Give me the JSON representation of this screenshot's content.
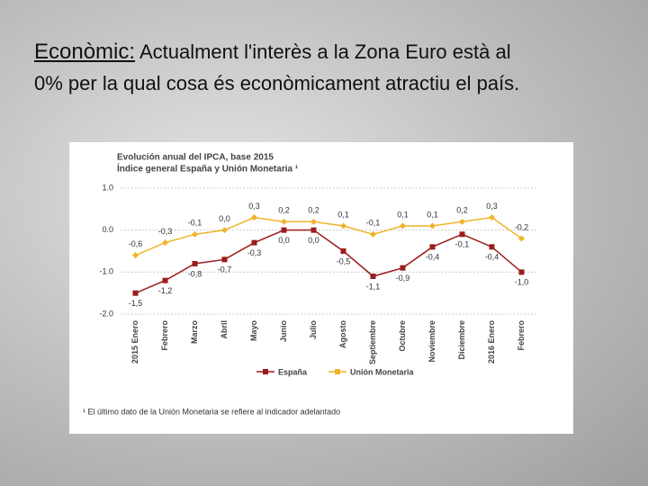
{
  "heading": {
    "label": "Econòmic:",
    "line1": "Actualment l'interès a la Zona Euro està al",
    "line2": "0% per la qual cosa és econòmicament atractiu el país."
  },
  "chart_data": {
    "type": "line",
    "title": "Evolución anual del IPCA, base 2015",
    "subtitle": "Índice general España y Unión Monetaria ¹",
    "footnote": "¹ El último dato de la Unión Monetaria se refiere al indicador adelantado",
    "categories": [
      "2015 Enero",
      "Febrero",
      "Marzo",
      "Abril",
      "Mayo",
      "Junio",
      "Julio",
      "Agosto",
      "Septiembre",
      "Octubre",
      "Noviembre",
      "Diciembre",
      "2016 Enero",
      "Febrero"
    ],
    "series": [
      {
        "name": "España",
        "color": "#9b1c1c",
        "values": [
          -1.5,
          -1.2,
          -0.8,
          -0.7,
          -0.3,
          0.0,
          0.0,
          -0.5,
          -1.1,
          -0.9,
          -0.4,
          -0.1,
          -0.4,
          -1.0
        ],
        "value_labels": [
          "-1,5",
          "-1,2",
          "-0,8",
          "-0,7",
          "-0,3",
          "0,0",
          "0,0",
          "-0,5",
          "-1,1",
          "-0,9",
          "-0,4",
          "-0,1",
          "-0,4",
          "-1,0"
        ]
      },
      {
        "name": "Unión Monetaria",
        "color": "#f0b429",
        "values": [
          -0.6,
          -0.3,
          -0.1,
          0.0,
          0.3,
          0.2,
          0.2,
          0.1,
          -0.1,
          0.1,
          0.1,
          0.2,
          0.3,
          -0.2
        ],
        "value_labels": [
          "-0,6",
          "-0,3",
          "-0,1",
          "0,0",
          "0,3",
          "0,2",
          "0,2",
          "0,1",
          "-0,1",
          "0,1",
          "0,1",
          "0,2",
          "0,3",
          "-0,2"
        ]
      }
    ],
    "ylim": [
      -2,
      1
    ],
    "yticks": [
      {
        "value": 1,
        "label": "1.0"
      },
      {
        "value": 0,
        "label": "0.0"
      },
      {
        "value": -1,
        "label": "-1.0"
      },
      {
        "value": -2,
        "label": "-2.0"
      }
    ],
    "grid": true,
    "legend": "bottom"
  }
}
